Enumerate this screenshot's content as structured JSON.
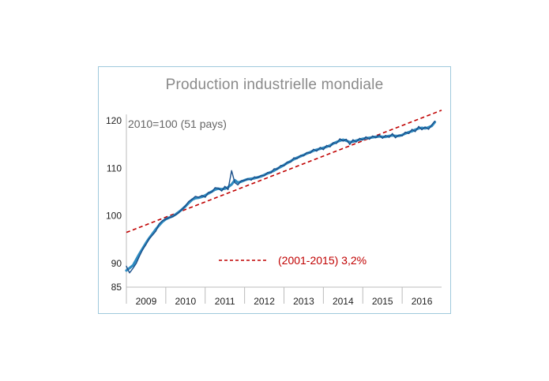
{
  "chart_data": {
    "type": "line",
    "title": "Production industrielle mondiale",
    "annotation": "2010=100 (51 pays)",
    "y_ticks": [
      85,
      90,
      100,
      110,
      120
    ],
    "ylim": [
      85,
      121
    ],
    "x_categories": [
      "2009",
      "2010",
      "2011",
      "2012",
      "2013",
      "2014",
      "2015",
      "2016"
    ],
    "xlim": [
      2009.0,
      2017.0
    ],
    "grid": false,
    "series": [
      {
        "color": "#2e8bc0",
        "points": [
          [
            2009.0,
            88.5
          ],
          [
            2009.08,
            89.0
          ],
          [
            2009.17,
            89.6
          ],
          [
            2009.25,
            90.8
          ],
          [
            2009.33,
            92.0
          ],
          [
            2009.42,
            93.2
          ],
          [
            2009.5,
            94.3
          ],
          [
            2009.58,
            95.3
          ],
          [
            2009.67,
            96.3
          ],
          [
            2009.75,
            97.2
          ],
          [
            2009.83,
            98.0
          ],
          [
            2009.92,
            98.8
          ],
          [
            2010.0,
            99.3
          ],
          [
            2010.08,
            99.6
          ],
          [
            2010.17,
            99.9
          ],
          [
            2010.25,
            100.3
          ],
          [
            2010.33,
            100.8
          ],
          [
            2010.42,
            101.4
          ],
          [
            2010.5,
            102.0
          ],
          [
            2010.58,
            102.7
          ],
          [
            2010.67,
            103.4
          ],
          [
            2010.75,
            103.7
          ],
          [
            2010.83,
            103.8
          ],
          [
            2010.92,
            104.0
          ],
          [
            2011.0,
            104.3
          ],
          [
            2011.08,
            104.7
          ],
          [
            2011.17,
            105.1
          ],
          [
            2011.25,
            105.5
          ],
          [
            2011.33,
            105.7
          ],
          [
            2011.42,
            105.6
          ],
          [
            2011.5,
            105.7
          ],
          [
            2011.58,
            106.0
          ],
          [
            2011.67,
            106.6
          ],
          [
            2011.75,
            107.5
          ],
          [
            2011.83,
            107.0
          ],
          [
            2011.92,
            107.2
          ],
          [
            2012.0,
            107.5
          ],
          [
            2012.08,
            107.7
          ],
          [
            2012.17,
            107.8
          ],
          [
            2012.25,
            107.9
          ],
          [
            2012.33,
            108.1
          ],
          [
            2012.42,
            108.3
          ],
          [
            2012.5,
            108.6
          ],
          [
            2012.58,
            108.9
          ],
          [
            2012.67,
            109.2
          ],
          [
            2012.75,
            109.5
          ],
          [
            2012.83,
            109.9
          ],
          [
            2012.92,
            110.3
          ],
          [
            2013.0,
            110.7
          ],
          [
            2013.08,
            111.1
          ],
          [
            2013.17,
            111.5
          ],
          [
            2013.25,
            111.9
          ],
          [
            2013.33,
            112.2
          ],
          [
            2013.42,
            112.5
          ],
          [
            2013.5,
            112.8
          ],
          [
            2013.58,
            113.1
          ],
          [
            2013.67,
            113.4
          ],
          [
            2013.75,
            113.7
          ],
          [
            2013.83,
            113.9
          ],
          [
            2013.92,
            114.1
          ],
          [
            2014.0,
            114.3
          ],
          [
            2014.08,
            114.5
          ],
          [
            2014.17,
            114.8
          ],
          [
            2014.25,
            115.2
          ],
          [
            2014.33,
            115.5
          ],
          [
            2014.42,
            115.8
          ],
          [
            2014.5,
            116.0
          ],
          [
            2014.58,
            115.8
          ],
          [
            2014.67,
            115.5
          ],
          [
            2014.75,
            115.6
          ],
          [
            2014.83,
            115.8
          ],
          [
            2014.92,
            116.0
          ],
          [
            2015.0,
            116.2
          ],
          [
            2015.08,
            116.3
          ],
          [
            2015.17,
            116.4
          ],
          [
            2015.25,
            116.5
          ],
          [
            2015.33,
            116.6
          ],
          [
            2015.42,
            116.7
          ],
          [
            2015.5,
            116.6
          ],
          [
            2015.58,
            116.6
          ],
          [
            2015.67,
            116.8
          ],
          [
            2015.75,
            116.9
          ],
          [
            2015.83,
            116.8
          ],
          [
            2015.92,
            116.8
          ],
          [
            2016.0,
            117.0
          ],
          [
            2016.08,
            117.3
          ],
          [
            2016.17,
            117.6
          ],
          [
            2016.25,
            117.8
          ],
          [
            2016.33,
            118.1
          ],
          [
            2016.42,
            118.4
          ],
          [
            2016.5,
            118.5
          ],
          [
            2016.58,
            118.4
          ],
          [
            2016.67,
            118.6
          ],
          [
            2016.75,
            118.9
          ],
          [
            2016.83,
            119.7
          ]
        ]
      },
      {
        "color": "#1a4f8a",
        "points": [
          [
            2009.0,
            89.4
          ],
          [
            2009.08,
            88.0
          ],
          [
            2009.17,
            89.0
          ],
          [
            2009.25,
            90.0
          ],
          [
            2009.33,
            91.5
          ],
          [
            2009.42,
            93.0
          ],
          [
            2009.5,
            94.0
          ],
          [
            2009.58,
            95.2
          ],
          [
            2009.67,
            96.0
          ],
          [
            2009.75,
            96.8
          ],
          [
            2009.83,
            98.3
          ],
          [
            2009.92,
            99.0
          ],
          [
            2010.0,
            99.3
          ],
          [
            2010.08,
            99.6
          ],
          [
            2010.17,
            99.8
          ],
          [
            2010.25,
            100.2
          ],
          [
            2010.33,
            100.7
          ],
          [
            2010.42,
            101.4
          ],
          [
            2010.5,
            102.1
          ],
          [
            2010.58,
            103.0
          ],
          [
            2010.67,
            103.5
          ],
          [
            2010.75,
            104.1
          ],
          [
            2010.83,
            103.9
          ],
          [
            2010.92,
            104.3
          ],
          [
            2011.0,
            103.9
          ],
          [
            2011.08,
            104.9
          ],
          [
            2011.17,
            105.0
          ],
          [
            2011.25,
            105.9
          ],
          [
            2011.33,
            105.8
          ],
          [
            2011.42,
            105.2
          ],
          [
            2011.5,
            106.2
          ],
          [
            2011.58,
            105.5
          ],
          [
            2011.67,
            109.5
          ],
          [
            2011.75,
            107.0
          ],
          [
            2011.83,
            106.5
          ],
          [
            2011.92,
            107.4
          ],
          [
            2012.0,
            107.4
          ],
          [
            2012.08,
            107.8
          ],
          [
            2012.17,
            107.5
          ],
          [
            2012.25,
            108.2
          ],
          [
            2012.33,
            108.0
          ],
          [
            2012.42,
            108.5
          ],
          [
            2012.5,
            108.4
          ],
          [
            2012.58,
            109.1
          ],
          [
            2012.67,
            109.0
          ],
          [
            2012.75,
            109.9
          ],
          [
            2012.83,
            109.8
          ],
          [
            2012.92,
            110.6
          ],
          [
            2013.0,
            110.5
          ],
          [
            2013.08,
            111.3
          ],
          [
            2013.17,
            111.3
          ],
          [
            2013.25,
            112.2
          ],
          [
            2013.33,
            112.0
          ],
          [
            2013.42,
            112.7
          ],
          [
            2013.5,
            112.6
          ],
          [
            2013.58,
            113.3
          ],
          [
            2013.67,
            113.2
          ],
          [
            2013.75,
            114.0
          ],
          [
            2013.83,
            113.6
          ],
          [
            2013.92,
            114.4
          ],
          [
            2014.0,
            113.9
          ],
          [
            2014.08,
            114.8
          ],
          [
            2014.17,
            114.5
          ],
          [
            2014.25,
            115.4
          ],
          [
            2014.33,
            115.2
          ],
          [
            2014.42,
            116.2
          ],
          [
            2014.5,
            115.7
          ],
          [
            2014.58,
            116.1
          ],
          [
            2014.67,
            115.0
          ],
          [
            2014.75,
            116.0
          ],
          [
            2014.83,
            115.5
          ],
          [
            2014.92,
            116.3
          ],
          [
            2015.0,
            115.9
          ],
          [
            2015.08,
            116.6
          ],
          [
            2015.17,
            116.1
          ],
          [
            2015.25,
            116.8
          ],
          [
            2015.33,
            116.4
          ],
          [
            2015.42,
            117.0
          ],
          [
            2015.5,
            116.3
          ],
          [
            2015.58,
            116.9
          ],
          [
            2015.67,
            116.5
          ],
          [
            2015.75,
            117.3
          ],
          [
            2015.83,
            116.4
          ],
          [
            2015.92,
            117.0
          ],
          [
            2016.0,
            116.8
          ],
          [
            2016.08,
            117.6
          ],
          [
            2016.17,
            117.3
          ],
          [
            2016.25,
            118.2
          ],
          [
            2016.33,
            117.7
          ],
          [
            2016.42,
            118.8
          ],
          [
            2016.5,
            118.1
          ],
          [
            2016.58,
            118.7
          ],
          [
            2016.67,
            118.2
          ],
          [
            2016.75,
            119.1
          ],
          [
            2016.83,
            119.9
          ]
        ]
      }
    ],
    "trend": {
      "label": "(2001-2015) 3,2%",
      "color": "#c00000",
      "start": [
        2009.0,
        96.5
      ],
      "end": [
        2017.0,
        122.2
      ]
    }
  }
}
